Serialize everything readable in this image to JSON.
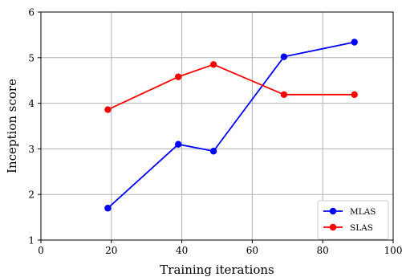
{
  "chart_data": {
    "type": "line",
    "xlabel": "Training iterations",
    "ylabel": "Inception score",
    "xlim": [
      0,
      100
    ],
    "ylim": [
      1,
      6
    ],
    "xticks": [
      0,
      20,
      40,
      60,
      80,
      100
    ],
    "yticks": [
      1,
      2,
      3,
      4,
      5,
      6
    ],
    "grid": true,
    "legend_position": "bottom-right",
    "series": [
      {
        "name": "MLAS",
        "color": "#0000ff",
        "marker": "circle",
        "x": [
          19,
          39,
          49,
          69,
          89
        ],
        "y": [
          1.7,
          3.1,
          2.95,
          5.02,
          5.34
        ]
      },
      {
        "name": "SLAS",
        "color": "#ff0000",
        "marker": "circle",
        "x": [
          19,
          39,
          49,
          69,
          89
        ],
        "y": [
          3.86,
          4.58,
          4.85,
          4.19,
          4.19
        ]
      }
    ]
  }
}
